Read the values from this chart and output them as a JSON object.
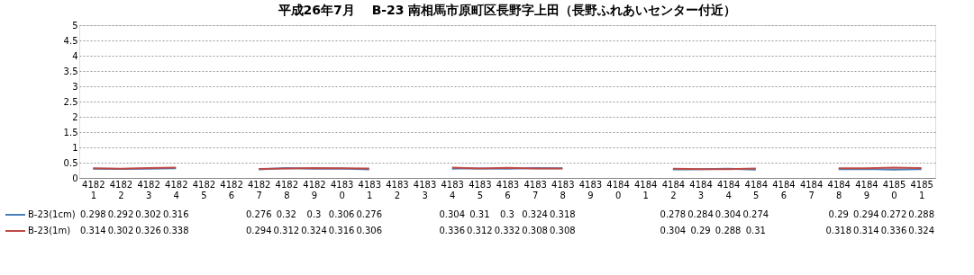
{
  "chart_data": {
    "type": "line",
    "title": "平成26年7月　 B-23 南相馬市原町区長野字上田（長野ふれあいセンター付近）",
    "categories": [
      "41821",
      "41822",
      "41823",
      "41824",
      "41825",
      "41826",
      "41827",
      "41828",
      "41829",
      "41830",
      "41831",
      "41832",
      "41833",
      "41834",
      "41835",
      "41836",
      "41837",
      "41838",
      "41839",
      "41840",
      "41841",
      "41842",
      "41843",
      "41844",
      "41845",
      "41846",
      "41847",
      "41848",
      "41849",
      "41850",
      "41851"
    ],
    "series": [
      {
        "name": "B-23(1cm)",
        "color": "#4a7ebb",
        "values": [
          0.298,
          0.292,
          0.302,
          0.316,
          null,
          null,
          0.276,
          0.32,
          0.3,
          0.306,
          0.276,
          null,
          null,
          0.304,
          0.31,
          0.3,
          0.324,
          0.318,
          null,
          null,
          null,
          0.278,
          0.284,
          0.304,
          0.274,
          null,
          null,
          0.29,
          0.294,
          0.272,
          0.288
        ]
      },
      {
        "name": "B-23(1m)",
        "color": "#be4b48",
        "values": [
          0.314,
          0.302,
          0.326,
          0.338,
          null,
          null,
          0.294,
          0.312,
          0.324,
          0.316,
          0.306,
          null,
          null,
          0.336,
          0.312,
          0.332,
          0.308,
          0.308,
          null,
          null,
          null,
          0.304,
          0.29,
          0.288,
          0.31,
          null,
          null,
          0.318,
          0.314,
          0.336,
          0.324
        ]
      }
    ],
    "ylim": [
      0,
      5
    ],
    "yticks": [
      0,
      0.5,
      1,
      1.5,
      2,
      2.5,
      3,
      3.5,
      4,
      4.5,
      5
    ],
    "grid": "y",
    "legend": "bottom left",
    "data_labels": true,
    "marker": "none",
    "line_style": "solid"
  }
}
